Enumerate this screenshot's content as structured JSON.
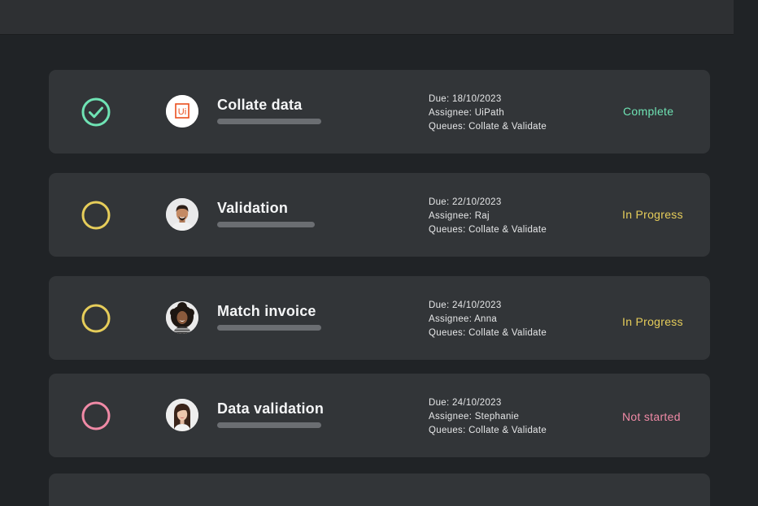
{
  "colors": {
    "complete": "#6fe3b4",
    "in_progress": "#e6cd5a",
    "not_started": "#f08aa6",
    "uipath_orange": "#ea4f1e"
  },
  "tasks": [
    {
      "title": "Collate data",
      "due": "Due: 18/10/2023",
      "assignee": "Assignee: UiPath",
      "queues": "Queues: Collate & Validate",
      "status": "Complete",
      "status_key": "complete",
      "avatar": "uipath-logo",
      "logo_text": "Ui"
    },
    {
      "title": "Validation",
      "due": "Due: 22/10/2023",
      "assignee": "Assignee: Raj",
      "queues": "Queues: Collate & Validate",
      "status": "In Progress",
      "status_key": "in_progress",
      "avatar": "man-photo"
    },
    {
      "title": "Match invoice",
      "due": "Due: 24/10/2023",
      "assignee": "Assignee: Anna",
      "queues": "Queues: Collate & Validate",
      "status": "In Progress",
      "status_key": "in_progress",
      "avatar": "woman-curly-photo"
    },
    {
      "title": "Data validation",
      "due": "Due: 24/10/2023",
      "assignee": "Assignee: Stephanie",
      "queues": "Queues: Collate & Validate",
      "status": "Not started",
      "status_key": "not_started",
      "avatar": "woman-photo"
    }
  ]
}
